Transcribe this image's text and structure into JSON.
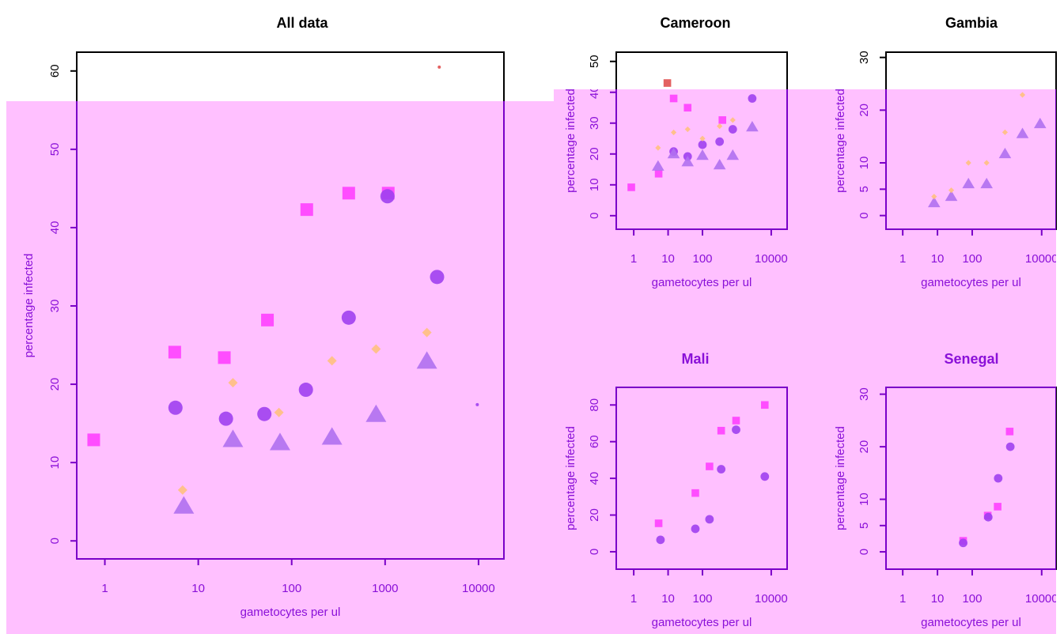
{
  "chart_data": [
    {
      "type": "scatter",
      "title": "All data",
      "xlabel": "gametocytes per ul",
      "ylabel": "percentage infected",
      "xlog": true,
      "xlim": [
        0.5,
        18700
      ],
      "ylim": [
        -2.3,
        62.4
      ],
      "xticks": [
        1,
        10,
        100,
        1000,
        10000
      ],
      "yticks": [
        0,
        10,
        20,
        30,
        40,
        50,
        60
      ],
      "series": [
        {
          "color": "#ff40ff",
          "marker": "square",
          "x": [
            0.76,
            5.6,
            19,
            55,
            145,
            408,
            1080
          ],
          "values": [
            12.9,
            24.1,
            23.4,
            28.2,
            42.3,
            44.4,
            44.4
          ]
        },
        {
          "color": "#a040f0",
          "marker": "circle",
          "x": [
            5.7,
            19.8,
            51,
            142,
            408,
            1060,
            3600
          ],
          "values": [
            17.0,
            15.6,
            16.2,
            19.3,
            28.5,
            44.0,
            33.7
          ]
        },
        {
          "color": "#b070f0",
          "marker": "triangle",
          "x": [
            7,
            23.5,
            75,
            270,
            800,
            2800
          ],
          "values": [
            4.4,
            12.9,
            12.5,
            13.2,
            16.1,
            22.9
          ]
        },
        {
          "color": "#ffc080",
          "marker": "diamond",
          "x": [
            6.8,
            23.5,
            73,
            270,
            800,
            2800
          ],
          "values": [
            6.5,
            20.2,
            16.4,
            23.0,
            24.5,
            26.6
          ]
        },
        {
          "color": "#e05050",
          "marker": "dot",
          "x": [
            3800
          ],
          "values": [
            60.5
          ]
        },
        {
          "color": "#a040f0",
          "marker": "dot",
          "x": [
            9700
          ],
          "values": [
            17.4
          ]
        }
      ]
    },
    {
      "type": "scatter",
      "title": "Cameroon",
      "xlabel": "gametocytes per ul",
      "ylabel": "percentage infected",
      "xlog": true,
      "xlim": [
        0.31,
        29000
      ],
      "ylim": [
        -4.4,
        53
      ],
      "xticks": [
        1,
        10,
        100,
        10000
      ],
      "yticks": [
        0,
        10,
        20,
        30,
        40,
        50
      ],
      "series": [
        {
          "color": "#ff40ff",
          "marker": "square",
          "x": [
            0.85,
            5.3,
            14.5,
            37,
            380
          ],
          "values": [
            9.2,
            13.6,
            38,
            35,
            31
          ]
        },
        {
          "color": "#a040f0",
          "marker": "circle",
          "x": [
            14.5,
            37,
            100,
            315,
            760,
            2800
          ],
          "values": [
            20.8,
            19.2,
            23,
            24,
            28,
            38
          ]
        },
        {
          "color": "#b070f0",
          "marker": "triangle",
          "x": [
            5.1,
            14.5,
            37,
            100,
            315,
            760,
            2800
          ],
          "values": [
            16,
            20,
            17.4,
            19.5,
            16.4,
            19.5,
            28.7
          ]
        },
        {
          "color": "#ffc080",
          "marker": "diamond",
          "x": [
            5.1,
            14.5,
            37,
            100,
            315,
            760
          ],
          "values": [
            22,
            27,
            28,
            25,
            29,
            31
          ]
        },
        {
          "color": "#e05050",
          "marker": "square",
          "x": [
            9.5
          ],
          "values": [
            43
          ]
        }
      ]
    },
    {
      "type": "scatter",
      "title": "Gambia",
      "xlabel": "gametocytes per ul",
      "ylabel": "percentage infected",
      "xlog": true,
      "xlim": [
        0.33,
        26000
      ],
      "ylim": [
        -2.6,
        31
      ],
      "xticks": [
        1,
        10,
        100,
        10000
      ],
      "yticks": [
        0,
        5,
        10,
        20,
        30
      ],
      "series": [
        {
          "color": "#b070f0",
          "marker": "triangle",
          "x": [
            8,
            25,
            78,
            260,
            880,
            2800,
            9000
          ],
          "values": [
            2.4,
            3.6,
            6,
            6,
            11.7,
            15.5,
            17.4
          ]
        },
        {
          "color": "#ffc080",
          "marker": "diamond",
          "x": [
            8,
            25,
            78,
            260,
            880,
            2800
          ],
          "values": [
            3.6,
            4.8,
            10,
            10,
            15.8,
            22.9
          ]
        }
      ]
    },
    {
      "type": "scatter",
      "title": "Mali",
      "xlabel": "gametocytes per ul",
      "ylabel": "percentage infected",
      "xlog": true,
      "xlim": [
        0.31,
        29000
      ],
      "ylim": [
        -9.5,
        89.6
      ],
      "xticks": [
        1,
        10,
        100,
        10000
      ],
      "yticks": [
        0,
        20,
        40,
        60,
        80
      ],
      "series": [
        {
          "color": "#ff40ff",
          "marker": "square",
          "x": [
            5.3,
            62,
            160,
            350,
            950,
            6500
          ],
          "values": [
            15.5,
            32,
            46.5,
            66,
            71.5,
            80
          ]
        },
        {
          "color": "#a040f0",
          "marker": "circle",
          "x": [
            6,
            62,
            160,
            350,
            950,
            6500
          ],
          "values": [
            6.5,
            12.5,
            17.7,
            45,
            66.5,
            41
          ]
        }
      ]
    },
    {
      "type": "scatter",
      "title": "Senegal",
      "xlabel": "gametocytes per ul",
      "ylabel": "percentage infected",
      "xlog": true,
      "xlim": [
        0.33,
        26000
      ],
      "ylim": [
        -3.3,
        31.3
      ],
      "xticks": [
        1,
        10,
        100,
        10000
      ],
      "yticks": [
        0,
        5,
        10,
        20,
        30
      ],
      "series": [
        {
          "color": "#ff40ff",
          "marker": "square",
          "x": [
            55,
            280,
            540,
            1200
          ],
          "values": [
            2.1,
            6.9,
            8.6,
            22.9
          ]
        },
        {
          "color": "#a040f0",
          "marker": "circle",
          "x": [
            55,
            290,
            560,
            1250
          ],
          "values": [
            1.7,
            6.6,
            14,
            20
          ]
        }
      ]
    }
  ]
}
